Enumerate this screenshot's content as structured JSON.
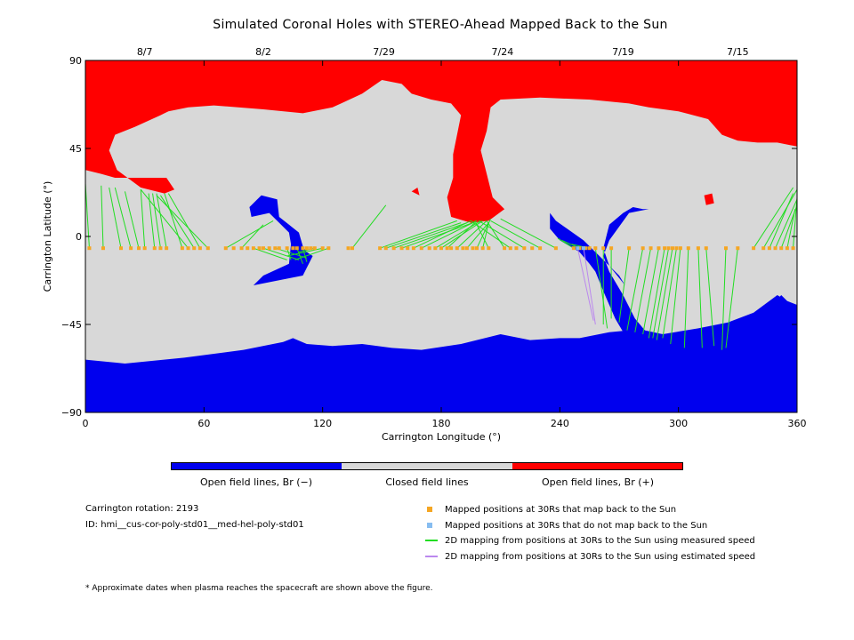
{
  "chart_data": {
    "type": "map",
    "title": "Simulated Coronal Holes with STEREO-Ahead Mapped Back to the Sun",
    "xlabel": "Carrington Longitude (°)",
    "ylabel": "Carrington Latitude (°)",
    "xlim": [
      0,
      360
    ],
    "ylim": [
      -90,
      90
    ],
    "x_ticks": [
      0,
      60,
      120,
      180,
      240,
      300,
      360
    ],
    "y_ticks": [
      -90,
      -45,
      0,
      45,
      90
    ],
    "x_tick_labels": [
      "0",
      "60",
      "120",
      "180",
      "240",
      "300",
      "360"
    ],
    "y_tick_labels": [
      "−90",
      "−45",
      "0",
      "45",
      "90"
    ],
    "top_axis_dates": [
      {
        "label": "8/7",
        "lon": 30
      },
      {
        "label": "8/2",
        "lon": 90
      },
      {
        "label": "7/29",
        "lon": 151
      },
      {
        "label": "7/24",
        "lon": 211
      },
      {
        "label": "7/19",
        "lon": 272
      },
      {
        "label": "7/15",
        "lon": 330
      }
    ],
    "colors": {
      "open_negative": "#0000ee",
      "closed": "#d8d8d8",
      "open_positive": "#ff0000",
      "mapped": "#f5a623",
      "unmapped": "#87bdf0",
      "measured_line": "#22dd22",
      "estimated_line": "#bb88ee"
    },
    "positive_region": [
      [
        0,
        90
      ],
      [
        360,
        90
      ],
      [
        360,
        46
      ],
      [
        350,
        48
      ],
      [
        340,
        48
      ],
      [
        330,
        49
      ],
      [
        322,
        52
      ],
      [
        315,
        60
      ],
      [
        300,
        64
      ],
      [
        285,
        66
      ],
      [
        275,
        68
      ],
      [
        255,
        70
      ],
      [
        230,
        71
      ],
      [
        210,
        70
      ],
      [
        205,
        66
      ],
      [
        203,
        54
      ],
      [
        200,
        44
      ],
      [
        202,
        36
      ],
      [
        206,
        20
      ],
      [
        212,
        14
      ],
      [
        204,
        8
      ],
      [
        195,
        7
      ],
      [
        185,
        10
      ],
      [
        183,
        20
      ],
      [
        186,
        30
      ],
      [
        186,
        42
      ],
      [
        188,
        52
      ],
      [
        190,
        62
      ],
      [
        185,
        68
      ],
      [
        175,
        70
      ],
      [
        165,
        73
      ],
      [
        160,
        78
      ],
      [
        150,
        80
      ],
      [
        140,
        73
      ],
      [
        125,
        66
      ],
      [
        110,
        63
      ],
      [
        90,
        65
      ],
      [
        65,
        67
      ],
      [
        52,
        66
      ],
      [
        42,
        64
      ],
      [
        38,
        62
      ],
      [
        25,
        56
      ],
      [
        15,
        52
      ],
      [
        12,
        44
      ],
      [
        16,
        34
      ],
      [
        28,
        25
      ],
      [
        40,
        22
      ],
      [
        45,
        24
      ],
      [
        41,
        30
      ],
      [
        30,
        30
      ],
      [
        15,
        30
      ],
      [
        8,
        32
      ],
      [
        0,
        34
      ]
    ],
    "positive_spot": [
      [
        313,
        21
      ],
      [
        317,
        22
      ],
      [
        318,
        17
      ],
      [
        314,
        16
      ]
    ],
    "positive_speck": [
      [
        165,
        23
      ],
      [
        168,
        25
      ],
      [
        169,
        21
      ]
    ],
    "negative_south": [
      [
        0,
        -63
      ],
      [
        20,
        -65
      ],
      [
        50,
        -62
      ],
      [
        80,
        -58
      ],
      [
        100,
        -54
      ],
      [
        105,
        -52
      ],
      [
        112,
        -55
      ],
      [
        125,
        -56
      ],
      [
        140,
        -55
      ],
      [
        155,
        -57
      ],
      [
        170,
        -58
      ],
      [
        190,
        -55
      ],
      [
        210,
        -50
      ],
      [
        225,
        -53
      ],
      [
        240,
        -52
      ],
      [
        250,
        -52
      ],
      [
        265,
        -49
      ],
      [
        275,
        -48
      ],
      [
        290,
        -50
      ],
      [
        310,
        -49
      ],
      [
        330,
        -45
      ],
      [
        345,
        -38
      ],
      [
        352,
        -30
      ],
      [
        355,
        -33
      ],
      [
        350,
        -40
      ],
      [
        340,
        -48
      ],
      [
        330,
        -55
      ],
      [
        315,
        -58
      ],
      [
        300,
        -57
      ],
      [
        285,
        -57
      ],
      [
        275,
        -54
      ],
      [
        268,
        -42
      ],
      [
        262,
        -28
      ],
      [
        258,
        -18
      ],
      [
        255,
        -14
      ],
      [
        250,
        -8
      ],
      [
        240,
        -2
      ],
      [
        235,
        4
      ],
      [
        235,
        12
      ],
      [
        238,
        8
      ],
      [
        245,
        3
      ],
      [
        252,
        -2
      ],
      [
        262,
        -12
      ],
      [
        270,
        -20
      ],
      [
        273,
        -25
      ],
      [
        265,
        -15
      ],
      [
        262,
        -6
      ],
      [
        265,
        6
      ],
      [
        272,
        12
      ],
      [
        277,
        15
      ],
      [
        282,
        14
      ],
      [
        285,
        14
      ],
      [
        280,
        13
      ],
      [
        275,
        12
      ],
      [
        265,
        -2
      ],
      [
        262,
        -10
      ],
      [
        265,
        -18
      ],
      [
        272,
        -30
      ],
      [
        278,
        -42
      ],
      [
        283,
        -48
      ],
      [
        292,
        -50
      ],
      [
        310,
        -47
      ],
      [
        325,
        -44
      ],
      [
        338,
        -39
      ],
      [
        350,
        -30
      ],
      [
        355,
        -33
      ],
      [
        360,
        -35
      ],
      [
        360,
        -90
      ],
      [
        0,
        -90
      ]
    ],
    "negative_mid": [
      [
        83,
        15
      ],
      [
        89,
        21
      ],
      [
        97,
        19
      ],
      [
        98,
        10
      ],
      [
        103,
        6
      ],
      [
        108,
        2
      ],
      [
        110,
        -5
      ],
      [
        112,
        -8
      ],
      [
        115,
        -10
      ],
      [
        110,
        -20
      ],
      [
        100,
        -22
      ],
      [
        85,
        -25
      ],
      [
        90,
        -20
      ],
      [
        103,
        -14
      ],
      [
        104,
        -4
      ],
      [
        103,
        2
      ],
      [
        97,
        8
      ],
      [
        93,
        12
      ],
      [
        84,
        10
      ]
    ],
    "mapped_positions": [
      [
        2,
        -6
      ],
      [
        9,
        -6
      ],
      [
        18,
        -6
      ],
      [
        23,
        -6
      ],
      [
        27,
        -6
      ],
      [
        30,
        -6
      ],
      [
        35,
        -6
      ],
      [
        38,
        -6
      ],
      [
        41,
        -6
      ],
      [
        49,
        -6
      ],
      [
        52,
        -6
      ],
      [
        55,
        -6
      ],
      [
        58,
        -6
      ],
      [
        62,
        -6
      ],
      [
        71,
        -6
      ],
      [
        75,
        -6
      ],
      [
        79,
        -6
      ],
      [
        82,
        -6
      ],
      [
        85,
        -6
      ],
      [
        88,
        -6
      ],
      [
        90,
        -6
      ],
      [
        93,
        -6
      ],
      [
        96,
        -6
      ],
      [
        98,
        -6
      ],
      [
        102,
        -6
      ],
      [
        105,
        -6
      ],
      [
        107,
        -6
      ],
      [
        110,
        -6
      ],
      [
        112,
        -6
      ],
      [
        114,
        -6
      ],
      [
        116,
        -6
      ],
      [
        120,
        -6
      ],
      [
        123,
        -6
      ],
      [
        133,
        -6
      ],
      [
        135,
        -6
      ],
      [
        149,
        -6
      ],
      [
        152,
        -6
      ],
      [
        156,
        -6
      ],
      [
        160,
        -6
      ],
      [
        163,
        -6
      ],
      [
        166,
        -6
      ],
      [
        170,
        -6
      ],
      [
        174,
        -6
      ],
      [
        177,
        -6
      ],
      [
        180,
        -6
      ],
      [
        183,
        -6
      ],
      [
        185,
        -6
      ],
      [
        188,
        -6
      ],
      [
        191,
        -6
      ],
      [
        193,
        -6
      ],
      [
        196,
        -6
      ],
      [
        198,
        -6
      ],
      [
        201,
        -6
      ],
      [
        204,
        -6
      ],
      [
        212,
        -6
      ],
      [
        215,
        -6
      ],
      [
        218,
        -6
      ],
      [
        222,
        -6
      ],
      [
        226,
        -6
      ],
      [
        230,
        -6
      ],
      [
        238,
        -6
      ],
      [
        247,
        -6
      ],
      [
        250,
        -6
      ],
      [
        253,
        -6
      ],
      [
        255,
        -6
      ],
      [
        258,
        -6
      ],
      [
        262,
        -6
      ],
      [
        266,
        -6
      ],
      [
        275,
        -6
      ],
      [
        282,
        -6
      ],
      [
        286,
        -6
      ],
      [
        290,
        -6
      ],
      [
        293,
        -6
      ],
      [
        295,
        -6
      ],
      [
        297,
        -6
      ],
      [
        299,
        -6
      ],
      [
        301,
        -6
      ],
      [
        305,
        -6
      ],
      [
        310,
        -6
      ],
      [
        314,
        -6
      ],
      [
        324,
        -6
      ],
      [
        330,
        -6
      ],
      [
        338,
        -6
      ],
      [
        343,
        -6
      ],
      [
        346,
        -6
      ],
      [
        349,
        -6
      ],
      [
        352,
        -6
      ],
      [
        355,
        -6
      ],
      [
        358,
        -6
      ]
    ],
    "unmapped_positions": [
      [
        249,
        -6
      ],
      [
        252,
        -6
      ]
    ],
    "measured_lines": [
      [
        2,
        -6,
        0,
        27
      ],
      [
        9,
        -6,
        8,
        26
      ],
      [
        18,
        -6,
        12,
        25
      ],
      [
        23,
        -6,
        15,
        25
      ],
      [
        27,
        -6,
        20,
        23
      ],
      [
        30,
        -6,
        28,
        24
      ],
      [
        35,
        -6,
        32,
        22
      ],
      [
        38,
        -6,
        34,
        22
      ],
      [
        41,
        -6,
        36,
        22
      ],
      [
        49,
        -6,
        40,
        22
      ],
      [
        52,
        -6,
        28,
        24
      ],
      [
        55,
        -6,
        38,
        21
      ],
      [
        58,
        -6,
        42,
        22
      ],
      [
        62,
        -6,
        36,
        21
      ],
      [
        71,
        -6,
        95,
        8
      ],
      [
        79,
        -6,
        90,
        6
      ],
      [
        85,
        -6,
        102,
        -12
      ],
      [
        90,
        -6,
        108,
        -12
      ],
      [
        96,
        -6,
        112,
        -11
      ],
      [
        102,
        -6,
        104,
        -12
      ],
      [
        107,
        -6,
        110,
        -14
      ],
      [
        110,
        -6,
        112,
        -13
      ],
      [
        116,
        -6,
        108,
        -8
      ],
      [
        120,
        -6,
        102,
        -10
      ],
      [
        123,
        -6,
        106,
        -12
      ],
      [
        135,
        -6,
        152,
        16
      ],
      [
        149,
        -6,
        188,
        8
      ],
      [
        152,
        -6,
        190,
        7
      ],
      [
        156,
        -6,
        193,
        7
      ],
      [
        160,
        -6,
        196,
        7
      ],
      [
        166,
        -6,
        195,
        8
      ],
      [
        170,
        -6,
        198,
        8
      ],
      [
        177,
        -6,
        200,
        8
      ],
      [
        180,
        -6,
        201,
        8
      ],
      [
        183,
        -6,
        197,
        7
      ],
      [
        188,
        -6,
        203,
        8
      ],
      [
        193,
        -6,
        204,
        7
      ],
      [
        198,
        -6,
        205,
        9
      ],
      [
        201,
        -6,
        204,
        7
      ],
      [
        204,
        -6,
        197,
        8
      ],
      [
        212,
        -6,
        203,
        8
      ],
      [
        215,
        -6,
        195,
        8
      ],
      [
        222,
        -6,
        199,
        8
      ],
      [
        230,
        -6,
        205,
        8
      ],
      [
        238,
        -6,
        210,
        9
      ],
      [
        247,
        -6,
        239,
        -1
      ],
      [
        250,
        -6,
        241,
        -2
      ],
      [
        255,
        -6,
        246,
        -4
      ],
      [
        258,
        -6,
        264,
        -47
      ],
      [
        262,
        -6,
        262,
        -45
      ],
      [
        266,
        -6,
        266,
        -42
      ],
      [
        275,
        -6,
        270,
        -44
      ],
      [
        282,
        -6,
        274,
        -48
      ],
      [
        286,
        -6,
        278,
        -49
      ],
      [
        290,
        -6,
        282,
        -50
      ],
      [
        293,
        -6,
        285,
        -52
      ],
      [
        295,
        -6,
        287,
        -52
      ],
      [
        297,
        -6,
        289,
        -53
      ],
      [
        299,
        -6,
        292,
        -52
      ],
      [
        301,
        -6,
        296,
        -55
      ],
      [
        305,
        -6,
        303,
        -57
      ],
      [
        310,
        -6,
        312,
        -57
      ],
      [
        314,
        -6,
        318,
        -56
      ],
      [
        324,
        -6,
        322,
        -58
      ],
      [
        330,
        -6,
        324,
        -57
      ],
      [
        338,
        -6,
        358,
        25
      ],
      [
        343,
        -6,
        360,
        24
      ],
      [
        346,
        -6,
        358,
        22
      ],
      [
        349,
        -6,
        360,
        19
      ],
      [
        352,
        -6,
        360,
        16
      ],
      [
        355,
        -6,
        359,
        14
      ],
      [
        358,
        -6,
        360,
        20
      ]
    ],
    "estimated_lines": [
      [
        249,
        -6,
        257,
        -43
      ],
      [
        252,
        -6,
        258,
        -45
      ]
    ]
  },
  "colorbar_labels": {
    "negative": "Open field lines, Br (−)",
    "closed": "Closed field lines",
    "positive": "Open field lines, Br (+)"
  },
  "info": {
    "rotation": "Carrington rotation: 2193",
    "id": "ID: hmi__cus-cor-poly-std01__med-hel-poly-std01"
  },
  "legend": {
    "mapped": "Mapped positions at 30Rs that map back to the Sun",
    "unmapped": "Mapped positions at 30Rs that do not map back to the Sun",
    "measured": "2D mapping from positions at 30Rs to the Sun using measured speed",
    "estimated": "2D mapping from positions at 30Rs to the Sun using estimated speed"
  },
  "footnote": "* Approximate dates when plasma reaches the spacecraft are shown above the figure."
}
